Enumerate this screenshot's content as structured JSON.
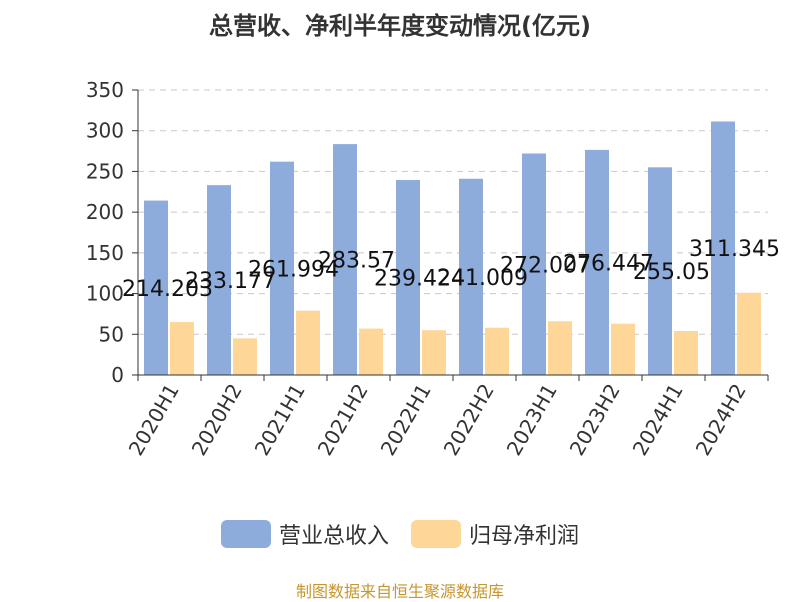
{
  "chart_data": {
    "type": "bar",
    "title": "总营收、净利半年度变动情况(亿元)",
    "categories": [
      "2020H1",
      "2020H2",
      "2021H1",
      "2021H2",
      "2022H1",
      "2022H2",
      "2023H1",
      "2023H2",
      "2024H1",
      "2024H2"
    ],
    "series": [
      {
        "name": "营业总收入",
        "color": "#8eacdb",
        "values": [
          214.203,
          233.177,
          261.994,
          283.57,
          239.424,
          241.009,
          272.007,
          276.447,
          255.05,
          311.345
        ],
        "labels": [
          "214.203",
          "233.177",
          "261.994",
          "283.57",
          "239.424",
          "241.009",
          "272.007",
          "276.447",
          "255.05",
          "311.345"
        ]
      },
      {
        "name": "归母净利润",
        "color": "#fdd698",
        "values": [
          65,
          45,
          79,
          57,
          55,
          58,
          66,
          63,
          54,
          101
        ]
      }
    ],
    "ylim": [
      0,
      350
    ],
    "yticks": [
      0,
      50,
      100,
      150,
      200,
      250,
      300,
      350
    ],
    "grid": true,
    "legend_position": "bottom"
  },
  "source": "制图数据来自恒生聚源数据库"
}
